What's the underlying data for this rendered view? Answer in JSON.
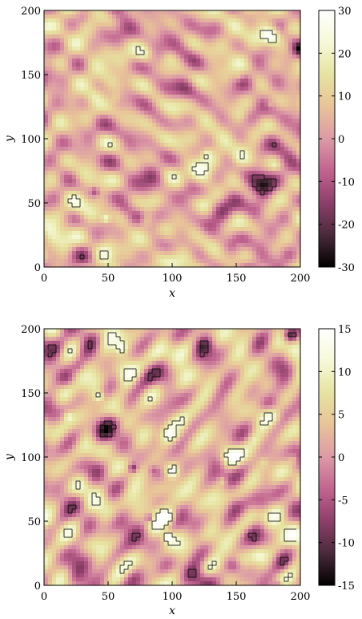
{
  "chart_data": [
    {
      "type": "heatmap",
      "title": "",
      "xlabel": "x",
      "ylabel": "y",
      "xlim": [
        0,
        200
      ],
      "ylim": [
        0,
        200
      ],
      "xticks": [
        "0",
        "50",
        "100",
        "150",
        "200"
      ],
      "yticks": [
        "0",
        "50",
        "100",
        "150",
        "200"
      ],
      "colorbar": {
        "range": [
          -30,
          30
        ],
        "ticks": [
          "30",
          "20",
          "10",
          "0",
          "-10",
          "-20",
          "-30"
        ]
      },
      "colormap": [
        "#000000",
        "#4a2a3a",
        "#8c3f6a",
        "#c0648f",
        "#dc9aa6",
        "#e8c398",
        "#e6e3a0",
        "#f6f9d8",
        "#ffffff"
      ],
      "contours": "black contour lines around extreme positive and negative regions",
      "seed": 11
    },
    {
      "type": "heatmap",
      "title": "",
      "xlabel": "x",
      "ylabel": "y",
      "xlim": [
        0,
        200
      ],
      "ylim": [
        0,
        200
      ],
      "xticks": [
        "0",
        "50",
        "100",
        "150",
        "200"
      ],
      "yticks": [
        "0",
        "50",
        "100",
        "150",
        "200"
      ],
      "colorbar": {
        "range": [
          -15,
          15
        ],
        "ticks": [
          "15",
          "10",
          "5",
          "0",
          "-5",
          "-10",
          "-15"
        ]
      },
      "colormap": [
        "#000000",
        "#4a2a3a",
        "#8c3f6a",
        "#c0648f",
        "#dc9aa6",
        "#e8c398",
        "#e6e3a0",
        "#f6f9d8",
        "#ffffff"
      ],
      "contours": "black contour lines around extreme positive and negative regions",
      "seed": 27
    }
  ]
}
